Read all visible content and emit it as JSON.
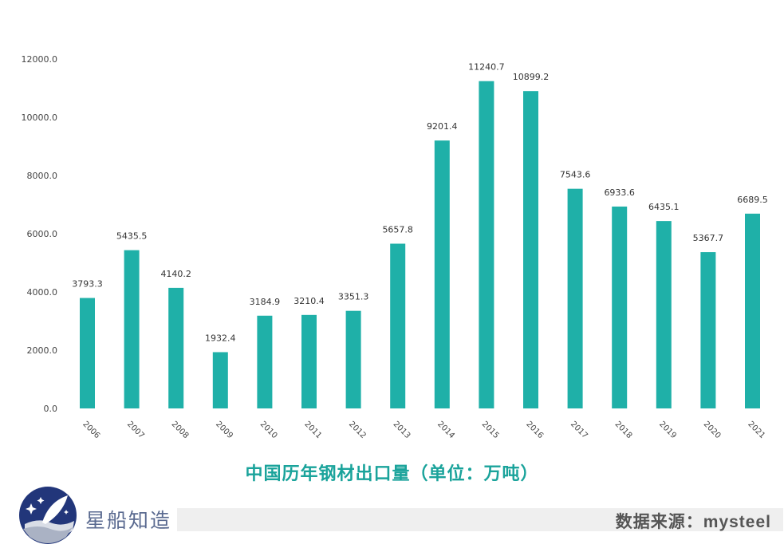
{
  "chart_data": {
    "type": "bar",
    "title": "中国历年钢材出口量（单位：万吨）",
    "xlabel": "",
    "ylabel": "",
    "ylim": [
      0,
      12000
    ],
    "yticks": [
      "0.0",
      "2000.0",
      "4000.0",
      "6000.0",
      "8000.0",
      "10000.0",
      "12000.0"
    ],
    "categories": [
      "2006",
      "2007",
      "2008",
      "2009",
      "2010",
      "2011",
      "2012",
      "2013",
      "2014",
      "2015",
      "2016",
      "2017",
      "2018",
      "2019",
      "2020",
      "2021"
    ],
    "values": [
      3793.3,
      5435.5,
      4140.2,
      1932.4,
      3184.9,
      3210.4,
      3351.3,
      5657.8,
      9201.4,
      11240.7,
      10899.2,
      7543.6,
      6933.6,
      6435.1,
      5367.7,
      6689.5
    ],
    "data_labels": [
      "3793.3",
      "5435.5",
      "4140.2",
      "1932.4",
      "3184.9",
      "3210.4",
      "3351.3",
      "5657.8",
      "9201.4",
      "11240.7",
      "10899.2",
      "7543.6",
      "6933.6",
      "6435.1",
      "5367.7",
      "6689.5"
    ],
    "grid": false,
    "bar_color": "#1fb0a8"
  },
  "footer": {
    "brand": "星船知造",
    "source": "数据来源：mysteel"
  },
  "colors": {
    "title": "#1aa39b",
    "logo_bg": "#22367a"
  }
}
